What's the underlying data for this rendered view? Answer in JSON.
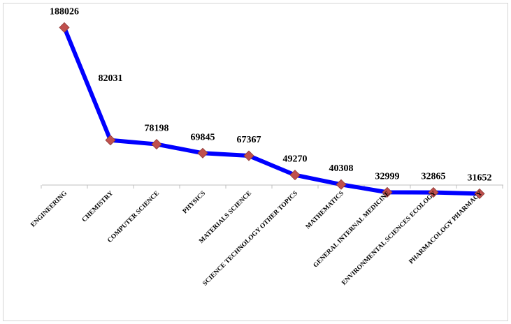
{
  "chart_data": {
    "type": "line",
    "title": "",
    "xlabel": "",
    "ylabel": "",
    "categories": [
      "ENGINEERING",
      "CHEMISTRY",
      "COMPUTER SCIENCE",
      "PHYSICS",
      "MATERIALS SCIENCE",
      "SCIENCE TECHNOLOGY OTHER TOPICS",
      "MATHEMATICS",
      "GENERAL INTERNAL MEDICINE",
      "ENVIRONMENTAL SCIENCES ECOLOGY",
      "PHARMACOLOGY PHARMACY"
    ],
    "values": [
      188026,
      82031,
      78198,
      69845,
      67367,
      49270,
      40308,
      32999,
      32865,
      31652
    ],
    "value_labels": [
      "188026",
      "82031",
      "78198",
      "69845",
      "67367",
      "49270",
      "40308",
      "32999",
      "32865",
      "31652"
    ],
    "grid": false,
    "legend": "none",
    "line_color": "#0000ff",
    "marker_color": "#c0504d",
    "marker_shape": "diamond"
  }
}
